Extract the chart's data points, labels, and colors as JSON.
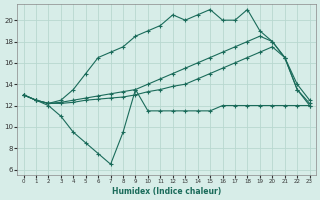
{
  "xlabel": "Humidex (Indice chaleur)",
  "background_color": "#d7ede8",
  "grid_color": "#b8d8d0",
  "line_color": "#1a6b5a",
  "x_ticks": [
    0,
    1,
    2,
    3,
    4,
    5,
    6,
    7,
    8,
    9,
    10,
    11,
    12,
    13,
    14,
    15,
    16,
    17,
    18,
    19,
    20,
    21,
    22,
    23
  ],
  "y_ticks": [
    6,
    8,
    10,
    12,
    14,
    16,
    18,
    20
  ],
  "ylim": [
    5.5,
    21.5
  ],
  "xlim": [
    -0.5,
    23.5
  ],
  "series_zigzag_x": [
    0,
    1,
    2,
    3,
    4,
    5,
    6,
    7,
    8,
    9,
    10,
    11,
    12,
    13,
    14,
    15,
    16,
    17,
    18,
    19,
    20,
    21,
    22,
    23
  ],
  "series_zigzag_y": [
    13.0,
    12.5,
    12.0,
    11.0,
    9.5,
    8.5,
    7.5,
    6.5,
    9.5,
    13.5,
    11.5,
    11.5,
    11.5,
    11.5,
    11.5,
    11.5,
    12.0,
    12.0,
    12.0,
    12.0,
    12.0,
    12.0,
    12.0,
    12.0
  ],
  "series_line1_x": [
    0,
    1,
    2,
    3,
    4,
    5,
    6,
    7,
    8,
    9,
    10,
    11,
    12,
    13,
    14,
    15,
    16,
    17,
    18,
    19,
    20,
    21,
    22,
    23
  ],
  "series_line1_y": [
    13.0,
    12.5,
    12.2,
    12.2,
    12.3,
    12.5,
    12.6,
    12.7,
    12.8,
    13.0,
    13.3,
    13.5,
    13.8,
    14.0,
    14.5,
    15.0,
    15.5,
    16.0,
    16.5,
    17.0,
    17.5,
    16.5,
    13.5,
    12.0
  ],
  "series_line2_x": [
    0,
    1,
    2,
    3,
    4,
    5,
    6,
    7,
    8,
    9,
    10,
    11,
    12,
    13,
    14,
    15,
    16,
    17,
    18,
    19,
    20,
    21,
    22,
    23
  ],
  "series_line2_y": [
    13.0,
    12.5,
    12.2,
    12.3,
    12.5,
    12.7,
    12.9,
    13.1,
    13.3,
    13.5,
    14.0,
    14.5,
    15.0,
    15.5,
    16.0,
    16.5,
    17.0,
    17.5,
    18.0,
    18.5,
    18.0,
    16.5,
    13.5,
    12.2
  ],
  "series_peak_x": [
    0,
    1,
    2,
    3,
    4,
    5,
    6,
    7,
    8,
    9,
    10,
    11,
    12,
    13,
    14,
    15,
    16,
    17,
    18,
    19,
    20,
    21,
    22,
    23
  ],
  "series_peak_y": [
    13.0,
    12.5,
    12.2,
    12.5,
    13.5,
    15.0,
    16.5,
    17.0,
    17.5,
    18.5,
    19.0,
    19.5,
    20.5,
    20.0,
    20.5,
    21.0,
    20.0,
    20.0,
    21.0,
    19.0,
    18.0,
    16.5,
    14.0,
    12.5
  ]
}
